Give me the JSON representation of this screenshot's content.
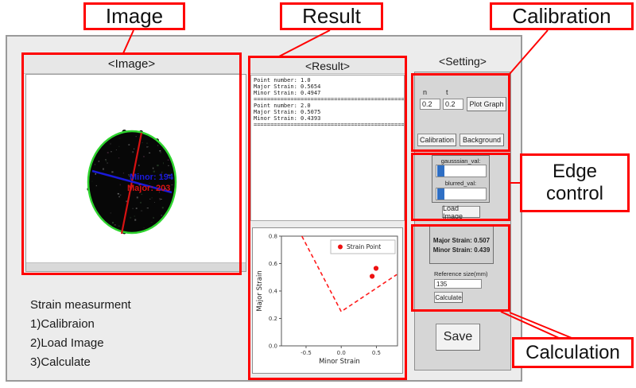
{
  "annotations": {
    "image_label": "Image",
    "result_label": "Result",
    "calibration_label": "Calibration",
    "edge_control_label": "Edge control",
    "calculation_label": "Calculation"
  },
  "window": {
    "image_section": {
      "header": "<Image>",
      "measurement": {
        "minor_label": "Minor: 194",
        "major_label": "Major: 203"
      }
    },
    "result_section": {
      "header": "<Result>",
      "entries": [
        {
          "lines": [
            "Point number: 1.0",
            "Major Strain: 0.5654",
            "Minor Strain: 0.4947"
          ]
        },
        {
          "lines": [
            "Point number: 2.0",
            "Major Strain: 0.5075",
            "Minor Strain: 0.4393"
          ]
        }
      ],
      "separator": "=============================================="
    },
    "setting_section": {
      "header": "<Setting>",
      "calibration_group": {
        "n_label": "n",
        "t_label": "t",
        "n_value": "0.2",
        "t_value": "0.2",
        "plot_graph_button": "Plot Graph",
        "calibration_button": "Calibration",
        "background_button": "Background"
      },
      "edge_group": {
        "gaussian_label": "gausssian_val:",
        "blurred_label": "blurred_val:",
        "load_image_button": "Load Image"
      },
      "calculation_group": {
        "major_strain": "Major Strain: 0.507",
        "minor_strain": "Minor Strain: 0.439",
        "reference_label": "Reference size(mm)",
        "reference_value": "135",
        "calculate_button": "Calculate"
      },
      "save_button": "Save"
    },
    "instructions": [
      "Strain measurment",
      "1)Calibraion",
      "2)Load Image",
      "3)Calculate"
    ]
  },
  "chart_data": {
    "type": "scatter",
    "title": "",
    "xlabel": "Minor Strain",
    "ylabel": "Major Strain",
    "xlim": [
      -0.85,
      0.8
    ],
    "ylim": [
      0.0,
      0.8
    ],
    "xticks": [
      -0.5,
      0.0,
      0.5
    ],
    "yticks": [
      0.0,
      0.2,
      0.4,
      0.6,
      0.8
    ],
    "grid": false,
    "legend_position": "upper right",
    "series": [
      {
        "name": "Strain Point",
        "type": "scatter",
        "color": "#ee1111",
        "points": [
          [
            0.4393,
            0.5075
          ],
          [
            0.4947,
            0.5654
          ]
        ]
      },
      {
        "name": "forming-limit-curve",
        "type": "line",
        "style": "dashed",
        "color": "#ff1c1c",
        "points": [
          [
            -0.56,
            0.8
          ],
          [
            0.0,
            0.25
          ],
          [
            0.79,
            0.52
          ]
        ]
      }
    ]
  },
  "colors": {
    "annotation_red": "#ff0000",
    "ellipse_outline": "#2fd42f",
    "major_axis_color": "#d71212",
    "minor_axis_color": "#1a1ad8",
    "slider_handle": "#2f6fc4"
  }
}
